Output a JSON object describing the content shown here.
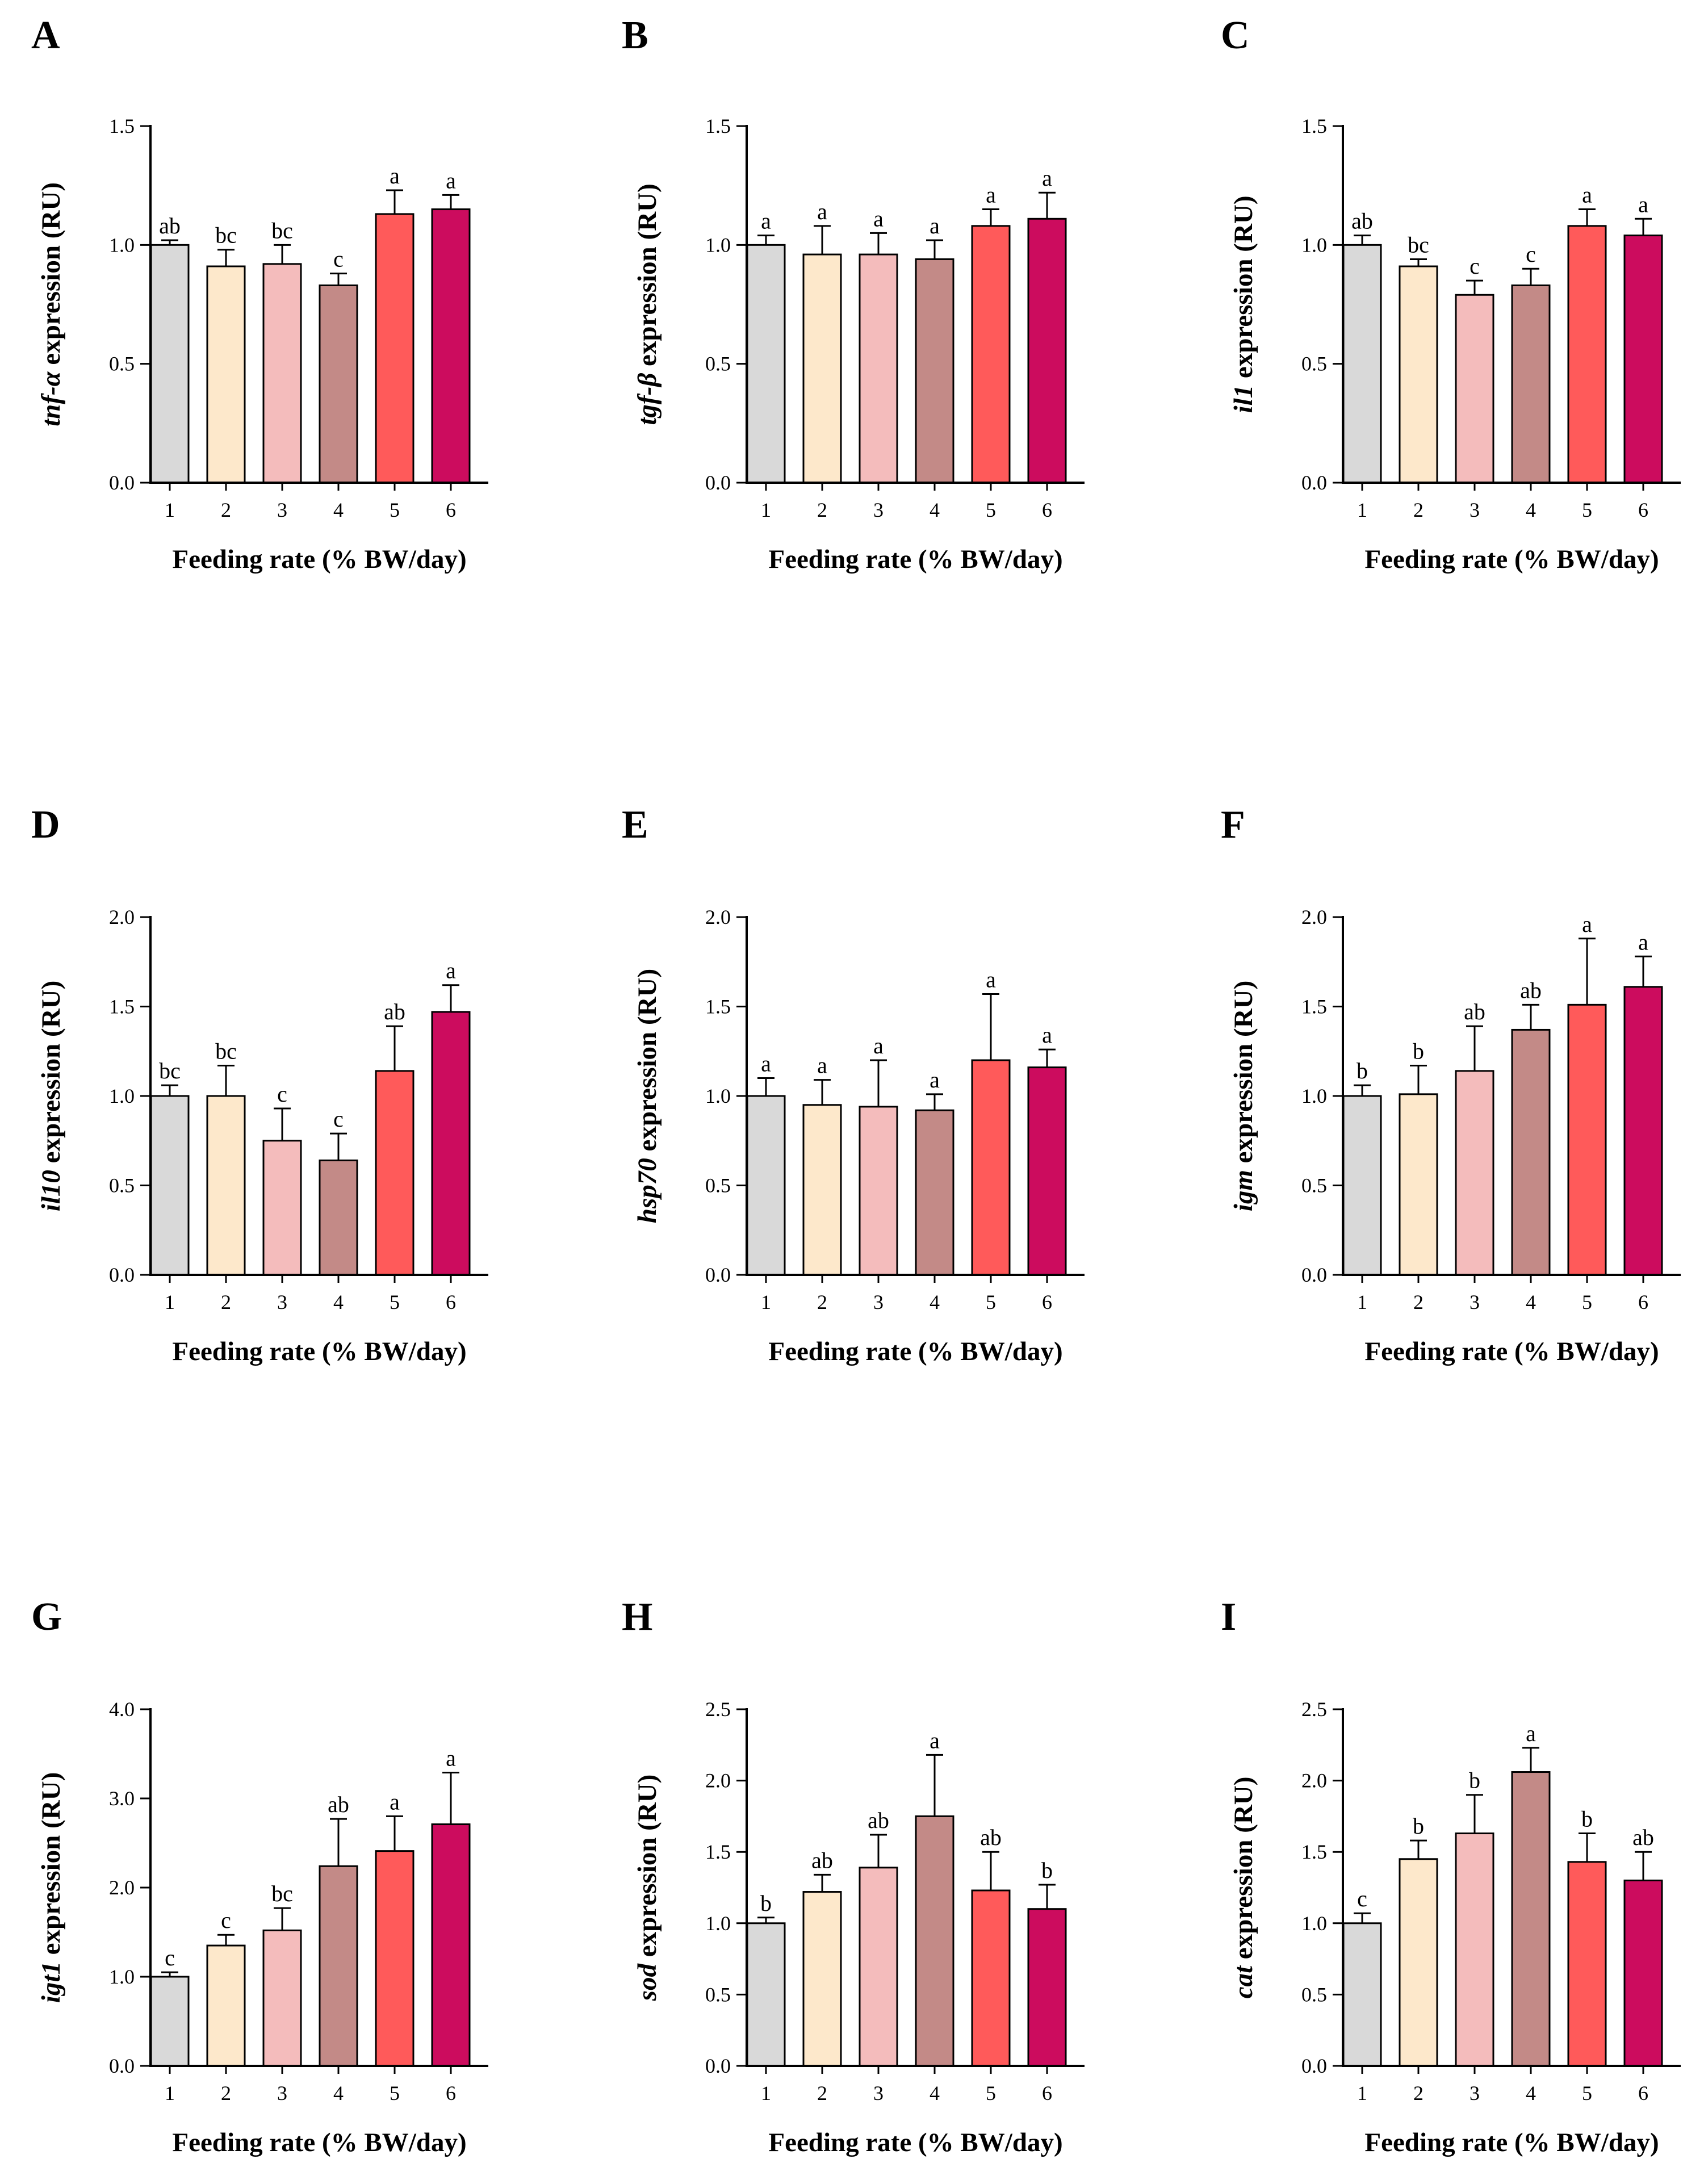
{
  "palette": [
    "#d9d9d9",
    "#fde8cb",
    "#f4bcbc",
    "#c38a87",
    "#ff5a5a",
    "#cc0c5e"
  ],
  "chart_data": [
    {
      "type": "bar",
      "panel": "A",
      "gene": "tnf-α",
      "ylabel_suffix": " expression (RU)",
      "xlabel": "Feeding rate (% BW/day)",
      "categories": [
        "1",
        "2",
        "3",
        "4",
        "5",
        "6"
      ],
      "values": [
        1.0,
        0.91,
        0.92,
        0.83,
        1.13,
        1.15
      ],
      "errors": [
        0.02,
        0.07,
        0.08,
        0.05,
        0.1,
        0.06
      ],
      "letters": [
        "ab",
        "bc",
        "bc",
        "c",
        "a",
        "a"
      ],
      "ylim": [
        0,
        1.5
      ],
      "yticks": [
        "0.0",
        "0.5",
        "1.0",
        "1.5"
      ]
    },
    {
      "type": "bar",
      "panel": "B",
      "gene": "tgf-β",
      "ylabel_suffix": " expression (RU)",
      "xlabel": "Feeding rate (% BW/day)",
      "categories": [
        "1",
        "2",
        "3",
        "4",
        "5",
        "6"
      ],
      "values": [
        1.0,
        0.96,
        0.96,
        0.94,
        1.08,
        1.11
      ],
      "errors": [
        0.04,
        0.12,
        0.09,
        0.08,
        0.07,
        0.11
      ],
      "letters": [
        "a",
        "a",
        "a",
        "a",
        "a",
        "a"
      ],
      "ylim": [
        0,
        1.5
      ],
      "yticks": [
        "0.0",
        "0.5",
        "1.0",
        "1.5"
      ]
    },
    {
      "type": "bar",
      "panel": "C",
      "gene": "il1",
      "ylabel_suffix": " expression (RU)",
      "xlabel": "Feeding rate (% BW/day)",
      "categories": [
        "1",
        "2",
        "3",
        "4",
        "5",
        "6"
      ],
      "values": [
        1.0,
        0.91,
        0.79,
        0.83,
        1.08,
        1.04
      ],
      "errors": [
        0.04,
        0.03,
        0.06,
        0.07,
        0.07,
        0.07
      ],
      "letters": [
        "ab",
        "bc",
        "c",
        "c",
        "a",
        "a"
      ],
      "ylim": [
        0,
        1.5
      ],
      "yticks": [
        "0.0",
        "0.5",
        "1.0",
        "1.5"
      ]
    },
    {
      "type": "bar",
      "panel": "D",
      "gene": "il10",
      "ylabel_suffix": " expression (RU)",
      "xlabel": "Feeding rate (% BW/day)",
      "categories": [
        "1",
        "2",
        "3",
        "4",
        "5",
        "6"
      ],
      "values": [
        1.0,
        1.0,
        0.75,
        0.64,
        1.14,
        1.47
      ],
      "errors": [
        0.06,
        0.17,
        0.18,
        0.15,
        0.25,
        0.15
      ],
      "letters": [
        "bc",
        "bc",
        "c",
        "c",
        "ab",
        "a"
      ],
      "ylim": [
        0,
        2.0
      ],
      "yticks": [
        "0.0",
        "0.5",
        "1.0",
        "1.5",
        "2.0"
      ]
    },
    {
      "type": "bar",
      "panel": "E",
      "gene": "hsp70",
      "ylabel_suffix": " expression (RU)",
      "xlabel": "Feeding rate (% BW/day)",
      "categories": [
        "1",
        "2",
        "3",
        "4",
        "5",
        "6"
      ],
      "values": [
        1.0,
        0.95,
        0.94,
        0.92,
        1.2,
        1.16
      ],
      "errors": [
        0.1,
        0.14,
        0.26,
        0.09,
        0.37,
        0.1
      ],
      "letters": [
        "a",
        "a",
        "a",
        "a",
        "a",
        "a"
      ],
      "ylim": [
        0,
        2.0
      ],
      "yticks": [
        "0.0",
        "0.5",
        "1.0",
        "1.5",
        "2.0"
      ]
    },
    {
      "type": "bar",
      "panel": "F",
      "gene": "igm",
      "ylabel_suffix": " expression (RU)",
      "xlabel": "Feeding rate (% BW/day)",
      "categories": [
        "1",
        "2",
        "3",
        "4",
        "5",
        "6"
      ],
      "values": [
        1.0,
        1.01,
        1.14,
        1.37,
        1.51,
        1.61
      ],
      "errors": [
        0.06,
        0.16,
        0.25,
        0.14,
        0.37,
        0.17
      ],
      "letters": [
        "b",
        "b",
        "ab",
        "ab",
        "a",
        "a"
      ],
      "ylim": [
        0,
        2.0
      ],
      "yticks": [
        "0.0",
        "0.5",
        "1.0",
        "1.5",
        "2.0"
      ]
    },
    {
      "type": "bar",
      "panel": "G",
      "gene": "igt1",
      "ylabel_suffix": " expression (RU)",
      "xlabel": "Feeding rate (% BW/day)",
      "categories": [
        "1",
        "2",
        "3",
        "4",
        "5",
        "6"
      ],
      "values": [
        1.0,
        1.35,
        1.52,
        2.24,
        2.41,
        2.71
      ],
      "errors": [
        0.05,
        0.12,
        0.25,
        0.53,
        0.39,
        0.58
      ],
      "letters": [
        "c",
        "c",
        "bc",
        "ab",
        "a",
        "a"
      ],
      "ylim": [
        0,
        4.0
      ],
      "yticks": [
        "0.0",
        "1.0",
        "2.0",
        "3.0",
        "4.0"
      ]
    },
    {
      "type": "bar",
      "panel": "H",
      "gene": "sod",
      "ylabel_suffix": " expression (RU)",
      "xlabel": "Feeding rate (% BW/day)",
      "categories": [
        "1",
        "2",
        "3",
        "4",
        "5",
        "6"
      ],
      "values": [
        1.0,
        1.22,
        1.39,
        1.75,
        1.23,
        1.1
      ],
      "errors": [
        0.04,
        0.12,
        0.23,
        0.43,
        0.27,
        0.17
      ],
      "letters": [
        "b",
        "ab",
        "ab",
        "a",
        "ab",
        "b"
      ],
      "ylim": [
        0,
        2.5
      ],
      "yticks": [
        "0.0",
        "0.5",
        "1.0",
        "1.5",
        "2.0",
        "2.5"
      ]
    },
    {
      "type": "bar",
      "panel": "I",
      "gene": "cat",
      "ylabel_suffix": " expression (RU)",
      "xlabel": "Feeding rate (% BW/day)",
      "categories": [
        "1",
        "2",
        "3",
        "4",
        "5",
        "6"
      ],
      "values": [
        1.0,
        1.45,
        1.63,
        2.06,
        1.43,
        1.3
      ],
      "errors": [
        0.07,
        0.13,
        0.27,
        0.17,
        0.2,
        0.2
      ],
      "letters": [
        "c",
        "b",
        "b",
        "a",
        "b",
        "ab"
      ],
      "ylim": [
        0,
        2.5
      ],
      "yticks": [
        "0.0",
        "0.5",
        "1.0",
        "1.5",
        "2.0",
        "2.5"
      ]
    }
  ]
}
